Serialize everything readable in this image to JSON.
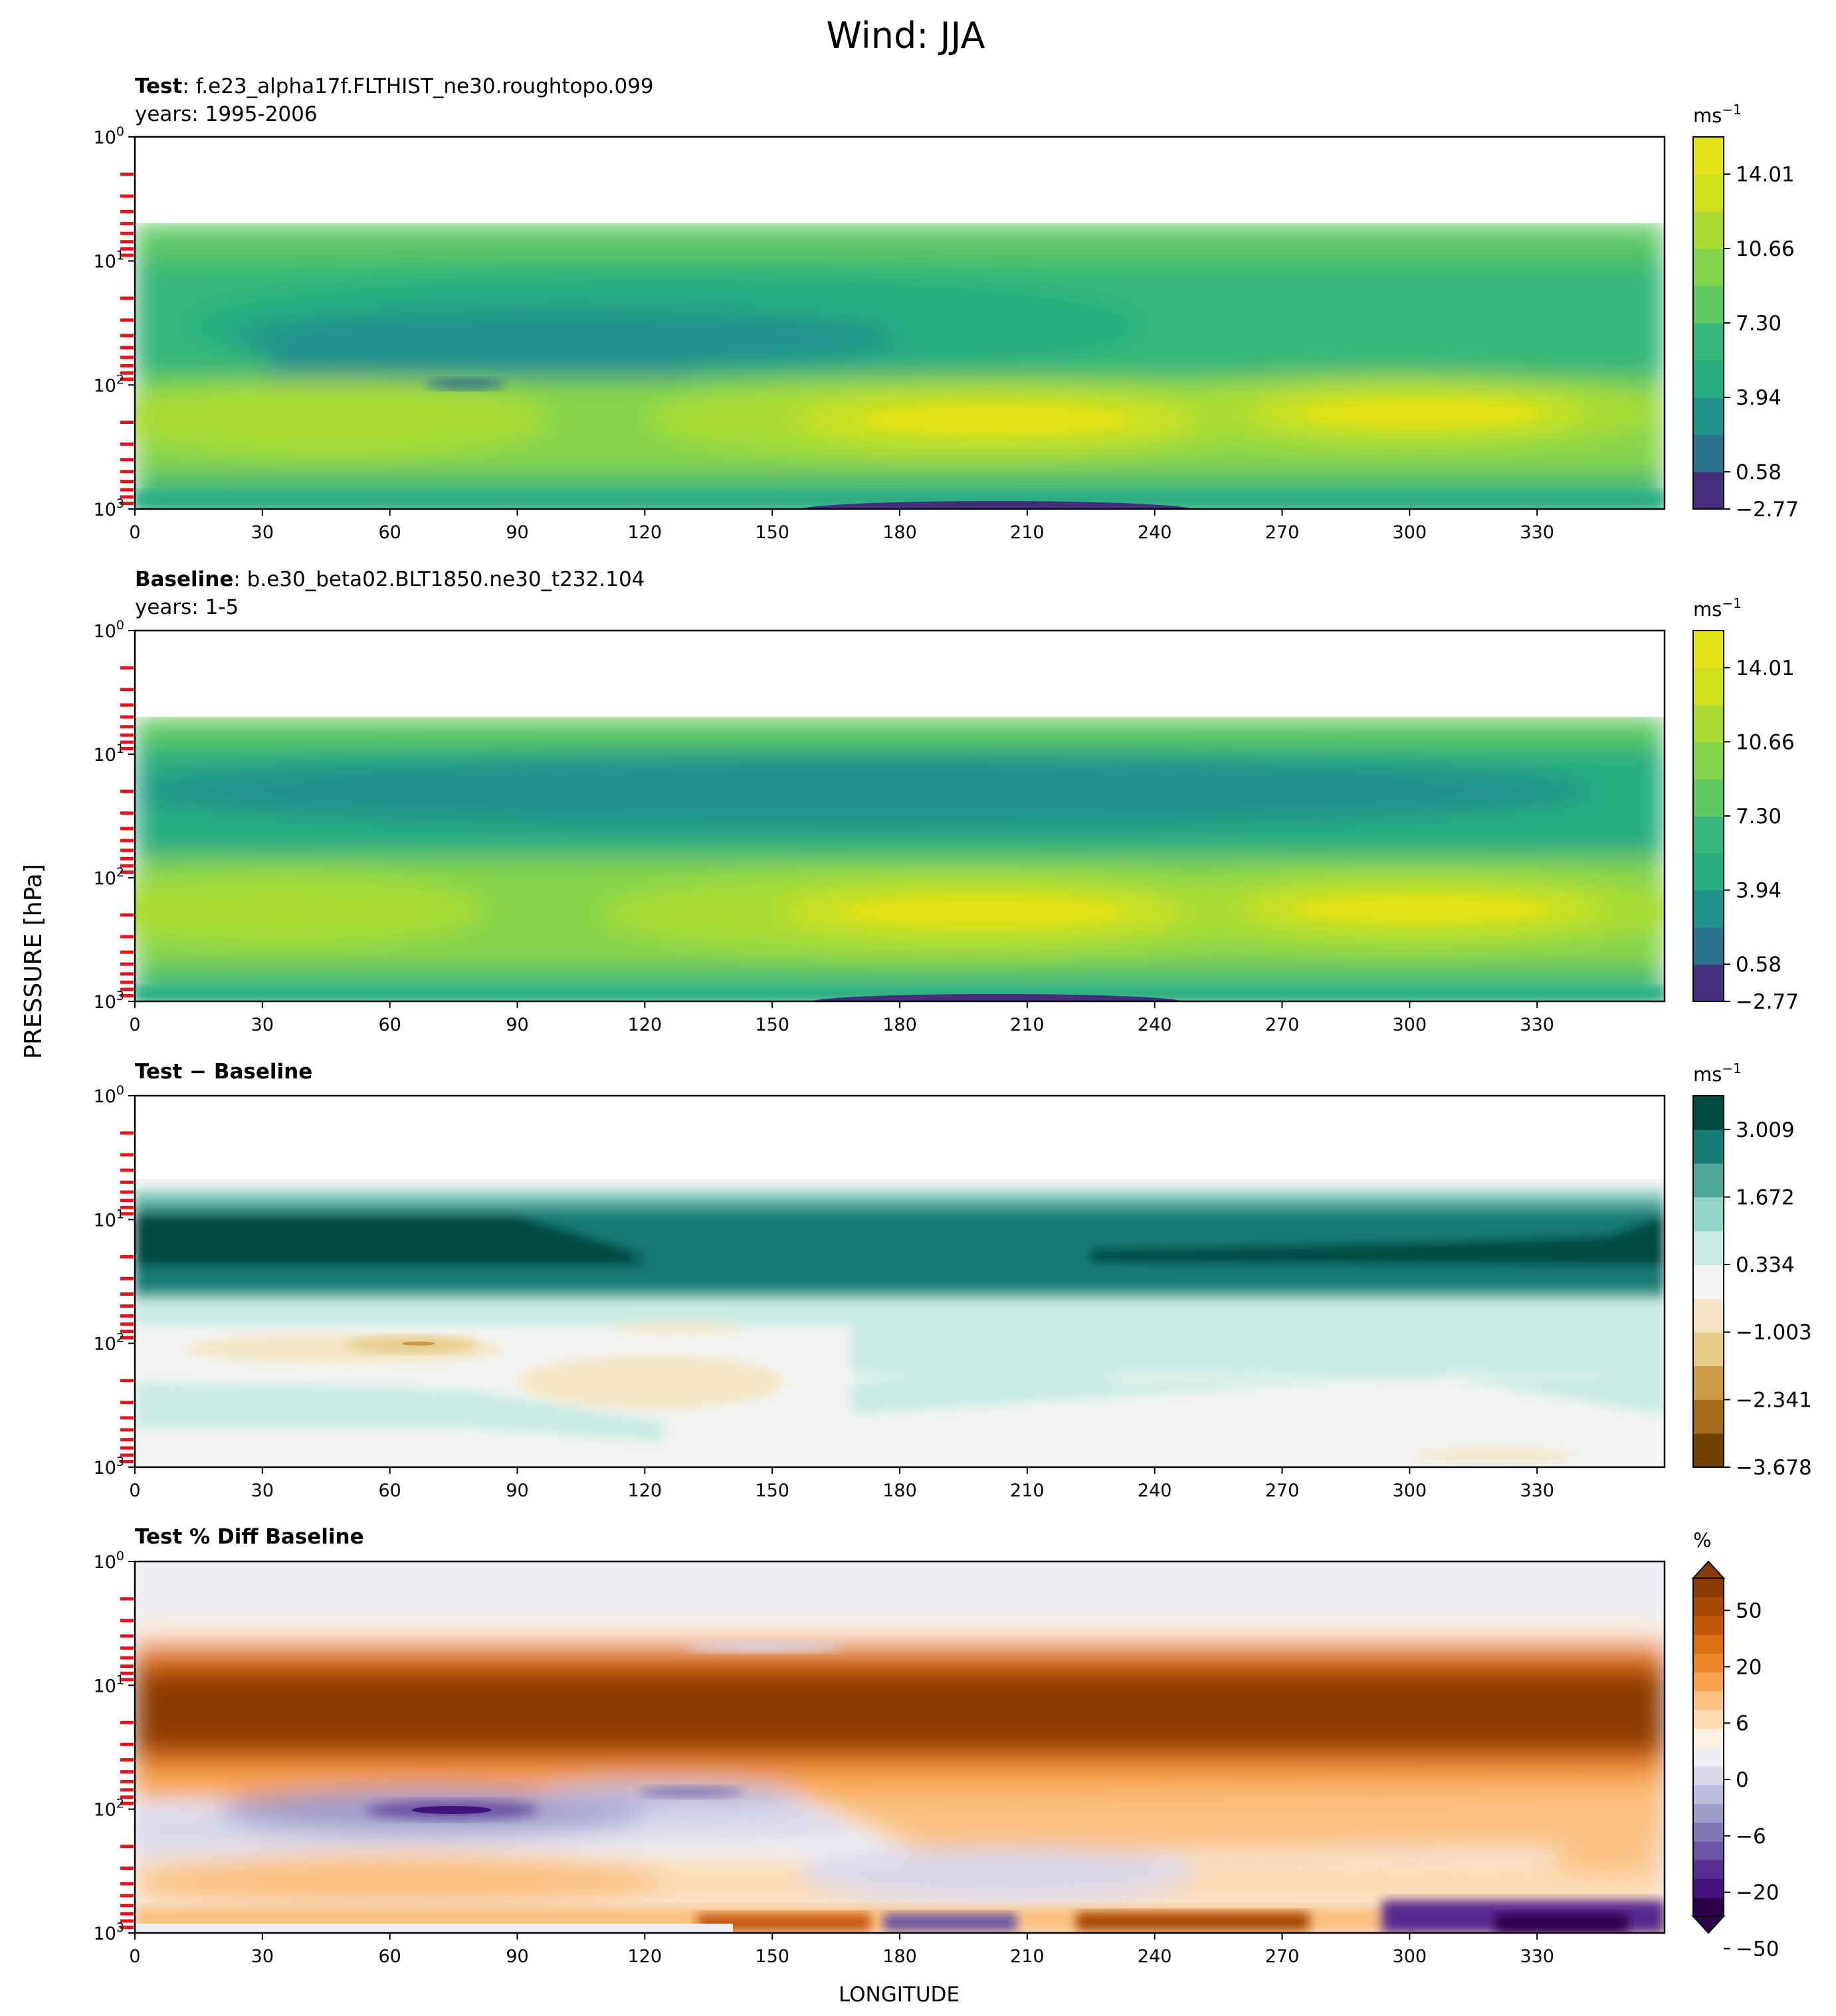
{
  "figure": {
    "title": "Wind: JJA",
    "ylabel": "PRESSURE [hPa]",
    "xlabel": "LONGITUDE"
  },
  "colors": {
    "viridis": [
      "#472e7c",
      "#2c718e",
      "#21918c",
      "#27ad81",
      "#35b779",
      "#5ec962",
      "#84d44b",
      "#aadc32",
      "#d0e11c",
      "#e3e418"
    ],
    "diff": [
      "#734004",
      "#a36b17",
      "#cb9b4a",
      "#e6cc87",
      "#f3e5c4",
      "#f3f4f3",
      "#cbebe4",
      "#94d5c9",
      "#51a79c",
      "#167b73",
      "#014a3f"
    ],
    "pct_warm": [
      "#fdf0de",
      "#fddcb2",
      "#fcc180",
      "#f8a24d",
      "#ec862a",
      "#db6d14",
      "#c2570a",
      "#a64706",
      "#8c3b05"
    ],
    "pct_cool": [
      "#eeeef4",
      "#d8d8ea",
      "#bdbbdb",
      "#a09cca",
      "#8478b6",
      "#6a53a3",
      "#562c91",
      "#42127b",
      "#2d004b"
    ],
    "ticks_red": "#e8131c"
  },
  "chart_data": [
    {
      "type": "heatmap",
      "title_bold": "Test",
      "title_rest": ": f.e23_alpha17f.FLTHIST_ne30.roughtopo.099",
      "subtitle": "years: 1995-2006",
      "units": "ms",
      "units_sup": "−1",
      "x_ticks": [
        "0",
        "30",
        "60",
        "90",
        "120",
        "150",
        "180",
        "210",
        "240",
        "270",
        "300",
        "330"
      ],
      "y_ticks_exp": [
        "0",
        "1",
        "2",
        "3"
      ],
      "xlim": [
        0,
        360
      ],
      "ylim": [
        1000,
        1
      ],
      "y_scale": "log",
      "colorbar_ticks": [
        "14.01",
        "10.66",
        "7.30",
        "3.94",
        "0.58",
        "−2.77"
      ]
    },
    {
      "type": "heatmap",
      "title_bold": "Baseline",
      "title_rest": ": b.e30_beta02.BLT1850.ne30_t232.104",
      "subtitle": "years: 1-5",
      "units": "ms",
      "units_sup": "−1",
      "x_ticks": [
        "0",
        "30",
        "60",
        "90",
        "120",
        "150",
        "180",
        "210",
        "240",
        "270",
        "300",
        "330"
      ],
      "y_ticks_exp": [
        "0",
        "1",
        "2",
        "3"
      ],
      "xlim": [
        0,
        360
      ],
      "ylim": [
        1000,
        1
      ],
      "y_scale": "log",
      "colorbar_ticks": [
        "14.01",
        "10.66",
        "7.30",
        "3.94",
        "0.58",
        "−2.77"
      ]
    },
    {
      "type": "heatmap",
      "title_bold": "Test − Baseline",
      "title_rest": "",
      "subtitle": "",
      "units": "ms",
      "units_sup": "−1",
      "x_ticks": [
        "0",
        "30",
        "60",
        "90",
        "120",
        "150",
        "180",
        "210",
        "240",
        "270",
        "300",
        "330"
      ],
      "y_ticks_exp": [
        "0",
        "1",
        "2",
        "3"
      ],
      "xlim": [
        0,
        360
      ],
      "ylim": [
        1000,
        1
      ],
      "y_scale": "log",
      "colorbar_ticks": [
        "3.009",
        "1.672",
        "0.334",
        "−1.003",
        "−2.341",
        "−3.678"
      ]
    },
    {
      "type": "heatmap",
      "title_bold": "Test % Diff Baseline",
      "title_rest": "",
      "subtitle": "",
      "units": "%",
      "units_sup": "",
      "x_ticks": [
        "0",
        "30",
        "60",
        "90",
        "120",
        "150",
        "180",
        "210",
        "240",
        "270",
        "300",
        "330"
      ],
      "y_ticks_exp": [
        "0",
        "1",
        "2",
        "3"
      ],
      "xlim": [
        0,
        360
      ],
      "ylim": [
        1000,
        1
      ],
      "y_scale": "log",
      "colorbar_ticks": [
        "50",
        "20",
        "6",
        "0",
        "−6",
        "−20",
        "−50"
      ]
    }
  ]
}
